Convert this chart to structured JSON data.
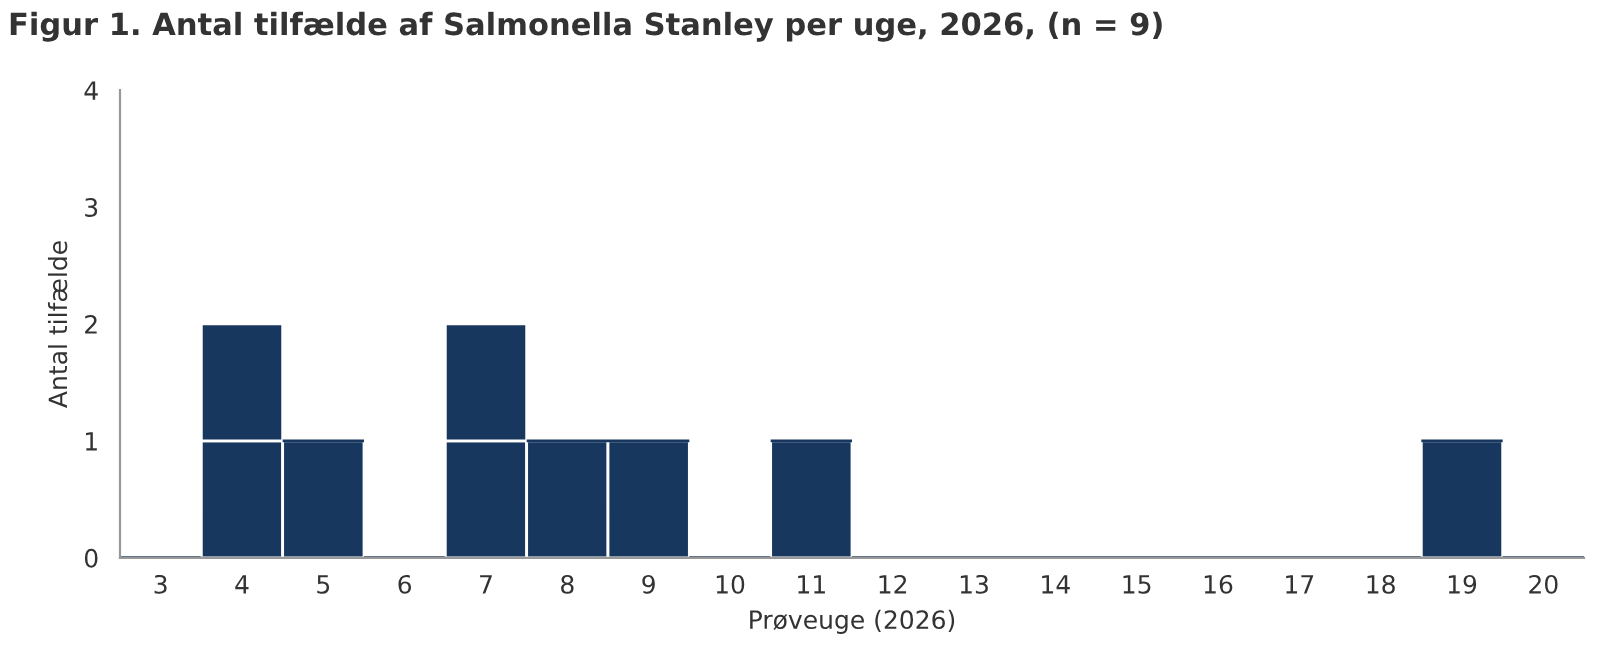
{
  "chart_data": {
    "type": "bar",
    "title": "Figur 1. Antal tilfælde af Salmonella Stanley per uge, 2026, (n = 9)",
    "xlabel": "Prøveuge (2026)",
    "ylabel": "Antal tilfælde",
    "categories": [
      "3",
      "4",
      "5",
      "6",
      "7",
      "8",
      "9",
      "10",
      "11",
      "12",
      "13",
      "14",
      "15",
      "16",
      "17",
      "18",
      "19",
      "20"
    ],
    "stacked": true,
    "series": [
      {
        "color": "#17375e",
        "values": [
          0,
          1,
          1,
          0,
          1,
          1,
          1,
          0,
          1,
          0,
          0,
          0,
          0,
          0,
          0,
          0,
          1,
          0
        ]
      },
      {
        "color": "#17375e",
        "values": [
          0,
          1,
          0,
          0,
          1,
          0,
          0,
          0,
          0,
          0,
          0,
          0,
          0,
          0,
          0,
          0,
          0,
          0
        ]
      }
    ],
    "ylim": [
      0,
      4
    ],
    "yticks": [
      0,
      1,
      2,
      3,
      4
    ],
    "grid": false
  }
}
